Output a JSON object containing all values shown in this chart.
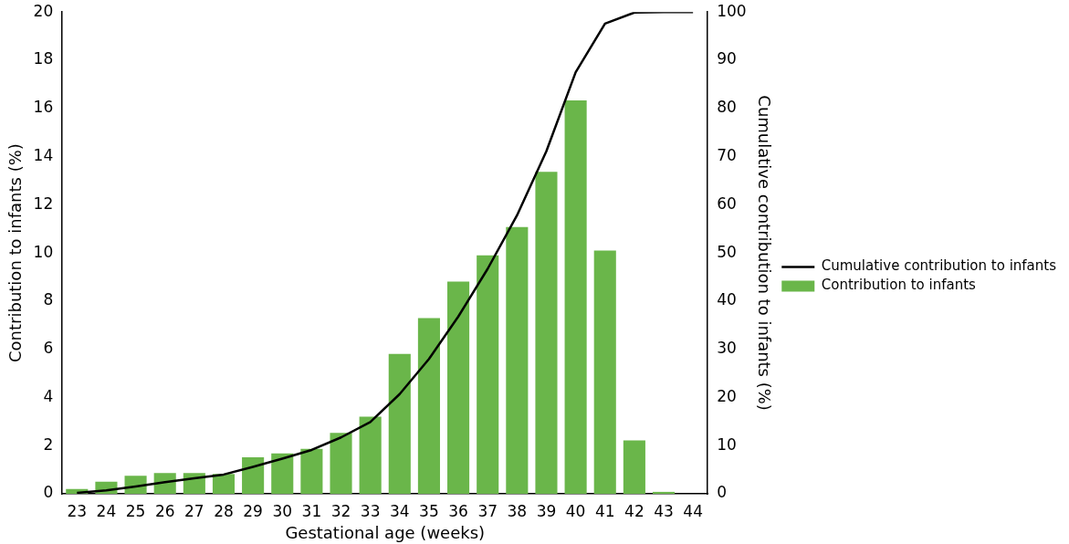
{
  "chart_data": {
    "type": "bar",
    "categories": [
      "23",
      "24",
      "25",
      "26",
      "27",
      "28",
      "29",
      "30",
      "31",
      "32",
      "33",
      "34",
      "35",
      "36",
      "37",
      "38",
      "39",
      "40",
      "41",
      "42",
      "43",
      "44"
    ],
    "series": [
      {
        "name": "Cumulative contribution to infants",
        "type": "line",
        "axis": "y2",
        "color": "#000000",
        "values": [
          0.2,
          0.7,
          1.5,
          2.4,
          3.2,
          4.0,
          5.6,
          7.3,
          9.1,
          11.7,
          14.9,
          20.7,
          28,
          36.8,
          46.7,
          57.8,
          71.1,
          87.5,
          97.6,
          99.9,
          100,
          100
        ]
      },
      {
        "name": "Contribution to infants",
        "color": "#6ab64a",
        "values": [
          0.2,
          0.5,
          0.75,
          0.86,
          0.86,
          0.82,
          1.52,
          1.68,
          1.87,
          2.53,
          3.2,
          5.81,
          7.29,
          8.81,
          9.9,
          11.07,
          13.37,
          16.33,
          10.1,
          2.22,
          0.08,
          0
        ]
      }
    ],
    "xlabel": "Gestational age (weeks)",
    "ylabel": "Contribution to infants (%)",
    "y2label": "Cumulative contribution to infants (%)",
    "ylim": [
      0,
      20
    ],
    "yticks": [
      0,
      2,
      4,
      6,
      8,
      10,
      12,
      14,
      16,
      18,
      20
    ],
    "y2lim": [
      0,
      100
    ],
    "y2ticks": [
      0,
      10,
      20,
      30,
      40,
      50,
      60,
      70,
      80,
      90,
      100
    ],
    "grid": false,
    "legend": "right",
    "marker": "none"
  }
}
